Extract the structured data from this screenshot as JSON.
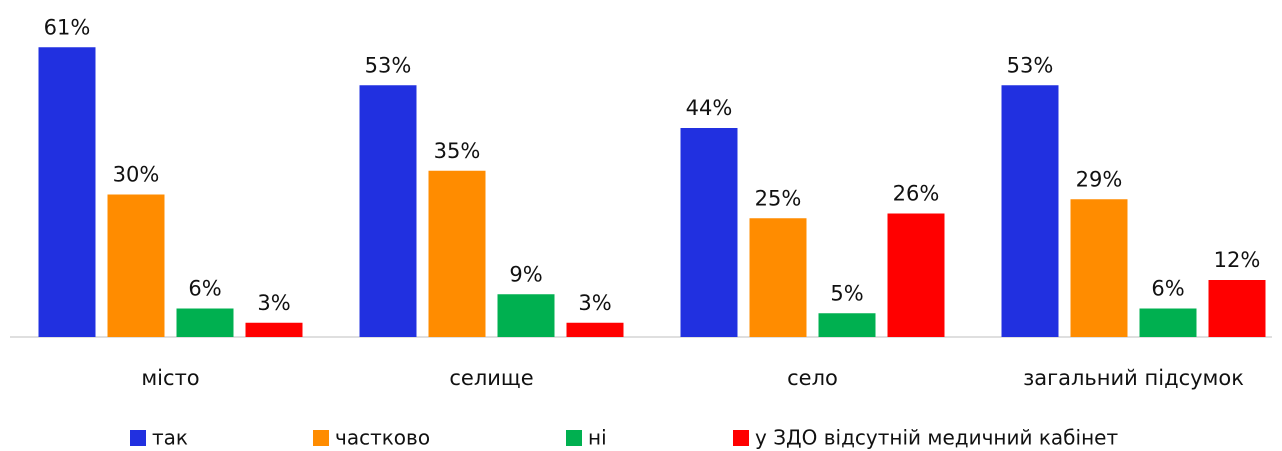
{
  "chart_data": {
    "type": "bar",
    "categories": [
      "місто",
      "селище",
      "село",
      "загальний підсумок"
    ],
    "series": [
      {
        "name": "так",
        "color": "#2130e0",
        "values": [
          61,
          53,
          44,
          53
        ],
        "value_labels": [
          "61%",
          "53%",
          "44%",
          "53%"
        ]
      },
      {
        "name": "частково",
        "color": "#ff8c00",
        "values": [
          30,
          35,
          25,
          29
        ],
        "value_labels": [
          "30%",
          "35%",
          "25%",
          "29%"
        ]
      },
      {
        "name": "ні",
        "color": "#00b050",
        "values": [
          6,
          9,
          5,
          6
        ],
        "value_labels": [
          "6%",
          "9%",
          "5%",
          "6%"
        ]
      },
      {
        "name": "у ЗДО відсутній медичний кабінет",
        "color": "#ff0000",
        "values": [
          3,
          3,
          26,
          12
        ],
        "value_labels": [
          "3%",
          "3%",
          "26%",
          "12%"
        ]
      }
    ],
    "legend": "bottom"
  }
}
